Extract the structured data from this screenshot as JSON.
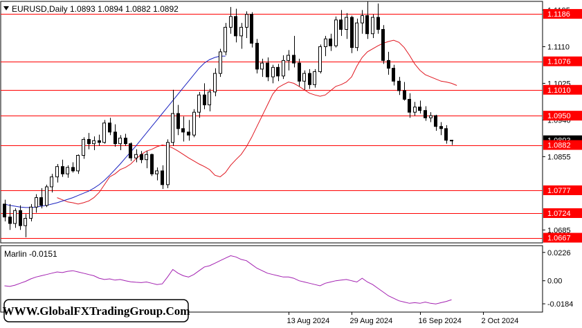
{
  "header": {
    "title": "EURUSD,Daily  1.0893 1.0894 1.0882 1.0892"
  },
  "indicator": {
    "label": "Marlin -0.0151"
  },
  "watermark": {
    "text": "WWW.GlobalFXTradingGroup.Com"
  },
  "colors": {
    "level_line": "#ff0000",
    "level_label_bg": "#ff0000",
    "level_label_text": "#ffffff",
    "ma_fast": "#e0161f",
    "ma_slow": "#1a22c0",
    "oscillator": "#a21fb0",
    "candle_bull_fill": "#ffffff",
    "candle_bear_fill": "#000000",
    "axis": "#000000",
    "grid": "#ffffff"
  },
  "icons": {
    "menu_toggle": "triangle-down-icon"
  },
  "chart_data": [
    {
      "type": "candlestick",
      "title": "EURUSD,Daily",
      "ohlc_header": {
        "open": 1.0893,
        "high": 1.0894,
        "low": 1.0882,
        "close": 1.0892
      },
      "ylim": [
        1.0655,
        1.1215
      ],
      "y_ticks": [
        {
          "label": "1.1195",
          "value": 1.1195
        },
        {
          "label": "1.1110",
          "value": 1.111
        },
        {
          "label": "1.1025",
          "value": 1.1025
        },
        {
          "label": "1.0940",
          "value": 1.094
        },
        {
          "label": "1.0855",
          "value": 1.0855
        },
        {
          "label": "1.0685",
          "value": 1.0685
        }
      ],
      "x_ticks": [
        {
          "label": "13 Aug 2024",
          "index": 54
        },
        {
          "label": "29 Aug 2024",
          "index": 66
        },
        {
          "label": "16 Sep 2024",
          "index": 79
        },
        {
          "label": "2 Oct 2024",
          "index": 91
        }
      ],
      "levels": [
        {
          "label": "1.1186",
          "value": 1.1186
        },
        {
          "label": "1.1076",
          "value": 1.1076
        },
        {
          "label": "1.1010",
          "value": 1.101
        },
        {
          "label": "1.0950",
          "value": 1.095
        },
        {
          "label": "1.0882",
          "value": 1.0882
        },
        {
          "label": "1.0777",
          "value": 1.0777
        },
        {
          "label": "1.0724",
          "value": 1.0724
        },
        {
          "label": "1.0667",
          "value": 1.0667
        }
      ],
      "current_price_label": "1.0893",
      "candles": [
        [
          1.0745,
          1.0755,
          1.0705,
          1.0715
        ],
        [
          1.0715,
          1.0745,
          1.0685,
          1.07
        ],
        [
          1.07,
          1.0735,
          1.069,
          1.073
        ],
        [
          1.073,
          1.0742,
          1.0685,
          1.0695
        ],
        [
          1.0695,
          1.0722,
          1.0668,
          1.0712
        ],
        [
          1.0712,
          1.0745,
          1.0705,
          1.0738
        ],
        [
          1.0738,
          1.0768,
          1.0725,
          1.076
        ],
        [
          1.076,
          1.0782,
          1.0735,
          1.0742
        ],
        [
          1.0742,
          1.079,
          1.0738,
          1.0785
        ],
        [
          1.0785,
          1.0815,
          1.0772,
          1.0808
        ],
        [
          1.0808,
          1.0838,
          1.0795,
          1.0832
        ],
        [
          1.0832,
          1.0848,
          1.0808,
          1.0815
        ],
        [
          1.0815,
          1.0835,
          1.0806,
          1.083
        ],
        [
          1.083,
          1.0842,
          1.0818,
          1.0822
        ],
        [
          1.0822,
          1.086,
          1.0815,
          1.0858
        ],
        [
          1.0858,
          1.09,
          1.085,
          1.0895
        ],
        [
          1.0895,
          1.091,
          1.0872,
          1.0885
        ],
        [
          1.0885,
          1.0902,
          1.087,
          1.0892
        ],
        [
          1.0892,
          1.0906,
          1.088,
          1.0888
        ],
        [
          1.0888,
          1.094,
          1.0885,
          1.0933
        ],
        [
          1.0933,
          1.0945,
          1.0905,
          1.0912
        ],
        [
          1.0912,
          1.093,
          1.0878,
          1.0885
        ],
        [
          1.0885,
          1.0905,
          1.087,
          1.0898
        ],
        [
          1.0898,
          1.0908,
          1.088,
          1.0885
        ],
        [
          1.0885,
          1.0888,
          1.0845,
          1.0852
        ],
        [
          1.0852,
          1.0872,
          1.0842,
          1.086
        ],
        [
          1.086,
          1.0868,
          1.084,
          1.0848
        ],
        [
          1.0848,
          1.0868,
          1.0828,
          1.086
        ],
        [
          1.086,
          1.0862,
          1.081,
          1.0815
        ],
        [
          1.0815,
          1.083,
          1.08,
          1.0822
        ],
        [
          1.0822,
          1.0835,
          1.078,
          1.079
        ],
        [
          1.079,
          1.0895,
          1.0782,
          1.0888
        ],
        [
          1.0888,
          1.101,
          1.088,
          1.0955
        ],
        [
          1.0955,
          1.0975,
          1.0905,
          1.092
        ],
        [
          1.092,
          1.0948,
          1.089,
          1.0912
        ],
        [
          1.0912,
          1.094,
          1.0892,
          1.0905
        ],
        [
          1.0905,
          1.0965,
          1.09,
          1.0958
        ],
        [
          1.0958,
          1.1005,
          1.0945,
          1.0998
        ],
        [
          1.0998,
          1.1025,
          1.0965,
          1.0975
        ],
        [
          1.0975,
          1.1012,
          1.096,
          1.1005
        ],
        [
          1.1005,
          1.106,
          1.0995,
          1.1048
        ],
        [
          1.1048,
          1.1105,
          1.104,
          1.1098
        ],
        [
          1.1098,
          1.1165,
          1.109,
          1.1155
        ],
        [
          1.1155,
          1.1202,
          1.114,
          1.118
        ],
        [
          1.118,
          1.1198,
          1.112,
          1.1135
        ],
        [
          1.1135,
          1.1165,
          1.1105,
          1.1155
        ],
        [
          1.1155,
          1.1192,
          1.113,
          1.1185
        ],
        [
          1.1185,
          1.119,
          1.1108,
          1.1118
        ],
        [
          1.1118,
          1.1128,
          1.1048,
          1.1058
        ],
        [
          1.1058,
          1.1082,
          1.104,
          1.1072
        ],
        [
          1.1072,
          1.1085,
          1.103,
          1.104
        ],
        [
          1.104,
          1.1068,
          1.1025,
          1.1062
        ],
        [
          1.1062,
          1.107,
          1.103,
          1.1042
        ],
        [
          1.1042,
          1.109,
          1.1035,
          1.1078
        ],
        [
          1.1078,
          1.1102,
          1.1055,
          1.109
        ],
        [
          1.109,
          1.1135,
          1.1062,
          1.1072
        ],
        [
          1.1072,
          1.1082,
          1.1018,
          1.103
        ],
        [
          1.103,
          1.1055,
          1.101,
          1.1048
        ],
        [
          1.1048,
          1.1058,
          1.1012,
          1.1022
        ],
        [
          1.1022,
          1.1058,
          1.1015,
          1.1052
        ],
        [
          1.1052,
          1.1115,
          1.1048,
          1.111
        ],
        [
          1.111,
          1.1135,
          1.1088,
          1.1128
        ],
        [
          1.1128,
          1.114,
          1.11,
          1.1112
        ],
        [
          1.1112,
          1.118,
          1.1108,
          1.1172
        ],
        [
          1.1172,
          1.1195,
          1.1135,
          1.115
        ],
        [
          1.115,
          1.1188,
          1.1128,
          1.1178
        ],
        [
          1.1178,
          1.1182,
          1.1095,
          1.1108
        ],
        [
          1.1108,
          1.1175,
          1.11,
          1.1165
        ],
        [
          1.1165,
          1.1195,
          1.114,
          1.1182
        ],
        [
          1.1182,
          1.1215,
          1.1128,
          1.114
        ],
        [
          1.114,
          1.1185,
          1.113,
          1.1178
        ],
        [
          1.1178,
          1.121,
          1.114,
          1.115
        ],
        [
          1.115,
          1.116,
          1.107,
          1.1078
        ],
        [
          1.1078,
          1.1098,
          1.1045,
          1.106
        ],
        [
          1.106,
          1.1068,
          1.102,
          1.103
        ],
        [
          1.103,
          1.104,
          1.0998,
          1.1008
        ],
        [
          1.1008,
          1.1028,
          1.0985,
          1.0988
        ],
        [
          1.0988,
          1.1002,
          1.0945,
          1.0958
        ],
        [
          1.0958,
          1.0982,
          1.095,
          1.097
        ],
        [
          1.097,
          1.0985,
          1.0955,
          1.0962
        ],
        [
          1.0962,
          1.0972,
          1.0938,
          1.0945
        ],
        [
          1.0945,
          1.0958,
          1.0935,
          1.095
        ],
        [
          1.095,
          1.0952,
          1.0915,
          1.0925
        ],
        [
          1.0925,
          1.0935,
          1.0905,
          1.092
        ],
        [
          1.092,
          1.0928,
          1.0885,
          1.0893
        ],
        [
          1.0893,
          1.0894,
          1.0882,
          1.0892
        ]
      ],
      "series": [
        {
          "values": [
            1.076,
            1.0755,
            1.075,
            1.0748,
            1.0745,
            1.0748,
            1.0752,
            1.076,
            1.0772,
            1.079,
            1.0808,
            1.0815,
            1.0825,
            1.083,
            1.0838,
            1.085,
            1.086,
            1.0868,
            1.0872,
            1.0878,
            1.0882,
            1.088,
            1.0875,
            1.0868,
            1.086,
            1.0852,
            1.0845,
            1.0838,
            1.0832,
            1.0825,
            1.0812,
            1.0808,
            1.0818,
            1.0835,
            1.0848,
            1.086,
            1.0878,
            1.09,
            1.0925,
            1.095,
            1.0975,
            1.1,
            1.1015,
            1.1022,
            1.1028,
            1.1025,
            1.1018,
            1.101,
            1.1002,
            1.0998,
            1.0995,
            1.0998,
            1.1008,
            1.1018,
            1.1022,
            1.1028,
            1.104,
            1.1065,
            1.1085,
            1.1098,
            1.1105,
            1.1112,
            1.1118,
            1.1122,
            1.1125,
            1.112,
            1.1108,
            1.109,
            1.107,
            1.1055,
            1.1045,
            1.104,
            1.1035,
            1.103,
            1.1028,
            1.1025,
            1.102
          ]
        },
        {
          "values": [
            1.0745,
            1.0742,
            1.074,
            1.0738,
            1.0737,
            1.0737,
            1.0738,
            1.074,
            1.0742,
            1.0745,
            1.0748,
            1.0752,
            1.0756,
            1.076,
            1.0765,
            1.077,
            1.0775,
            1.0782,
            1.079,
            1.08,
            1.0812,
            1.0825,
            1.0838,
            1.0852,
            1.0866,
            1.088,
            1.0895,
            1.091,
            1.0925,
            1.094,
            1.0955,
            1.097,
            1.0985,
            1.1,
            1.1015,
            1.103,
            1.1045,
            1.106,
            1.1072,
            1.108,
            1.1085,
            1.1088,
            1.1088
          ]
        }
      ],
      "ma_fast_start_index": 10,
      "ma_slow_start_index": 0
    },
    {
      "type": "line",
      "title": "Marlin -0.0151",
      "ylim": [
        -0.025,
        0.028
      ],
      "y_ticks": [
        {
          "label": "0.0226",
          "value": 0.0226
        },
        {
          "label": "0.00",
          "value": 0.0
        },
        {
          "label": "-0.0184",
          "value": -0.0184
        }
      ],
      "series": [
        {
          "values": [
            -0.004,
            -0.0045,
            -0.0035,
            -0.002,
            -0.0005,
            0.0015,
            0.003,
            0.004,
            0.005,
            0.006,
            0.007,
            0.0065,
            0.0075,
            0.008,
            0.007,
            0.006,
            0.005,
            0.004,
            0.002,
            0.001,
            0.0015,
            0.0005,
            0.001,
            0.0,
            -0.0008,
            -0.0012,
            -0.0015,
            -0.001,
            -0.002,
            -0.003,
            -0.0025,
            0.003,
            0.009,
            0.006,
            0.004,
            0.003,
            0.005,
            0.008,
            0.011,
            0.012,
            0.014,
            0.016,
            0.018,
            0.02,
            0.019,
            0.017,
            0.016,
            0.013,
            0.01,
            0.008,
            0.006,
            0.005,
            0.004,
            0.003,
            0.003,
            0.002,
            0.0,
            -0.001,
            -0.002,
            -0.003,
            -0.004,
            -0.002,
            -0.001,
            0.0,
            0.0005,
            0.001,
            0.0,
            -0.001,
            0.002,
            -0.001,
            -0.003,
            -0.006,
            -0.009,
            -0.012,
            -0.014,
            -0.016,
            -0.017,
            -0.018,
            -0.0175,
            -0.018,
            -0.017,
            -0.018,
            -0.0185,
            -0.0175,
            -0.0165,
            -0.0151
          ]
        }
      ]
    }
  ]
}
